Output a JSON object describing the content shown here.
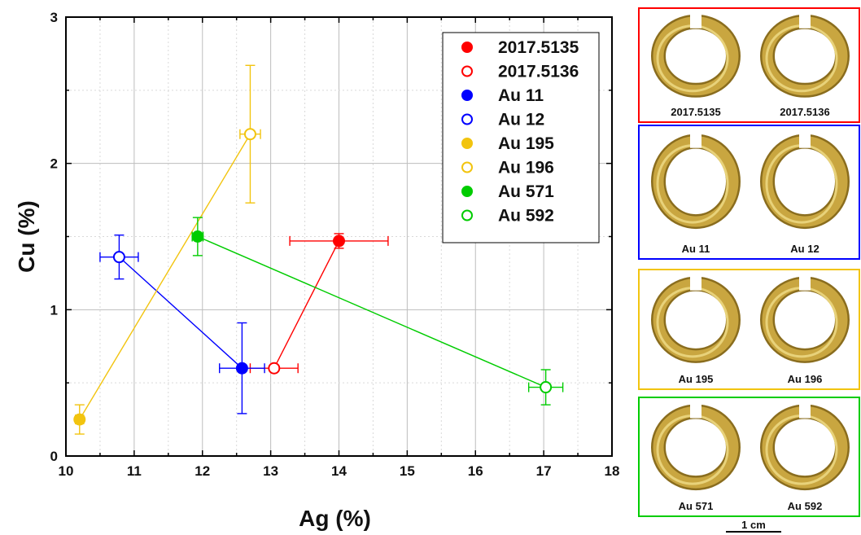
{
  "chart_data": {
    "type": "scatter",
    "xlabel": "Ag (%)",
    "ylabel": "Cu (%)",
    "xlim": [
      10,
      18
    ],
    "ylim": [
      0,
      3
    ],
    "xticks": [
      "10",
      "11",
      "12",
      "13",
      "14",
      "15",
      "16",
      "17",
      "18"
    ],
    "yticks": [
      "0",
      "1",
      "2",
      "3"
    ],
    "grid": true,
    "legend_position": "top-right",
    "series": [
      {
        "name": "2017.5135",
        "color": "#ff0000",
        "filled": true,
        "x": 14.0,
        "y": 1.47,
        "xerr": 0.72,
        "yerr": 0.05
      },
      {
        "name": "2017.5136",
        "color": "#ff0000",
        "filled": false,
        "x": 13.05,
        "y": 0.6,
        "xerr": 0.35,
        "yerr": 0.0
      },
      {
        "name": "Au 11",
        "color": "#0000ff",
        "filled": true,
        "x": 12.58,
        "y": 0.6,
        "xerr": 0.33,
        "yerr": 0.31
      },
      {
        "name": "Au 12",
        "color": "#0000ff",
        "filled": false,
        "x": 10.78,
        "y": 1.36,
        "xerr": 0.28,
        "yerr": 0.15
      },
      {
        "name": "Au 195",
        "color": "#f2c40f",
        "filled": true,
        "x": 10.2,
        "y": 0.25,
        "xerr": 0.06,
        "yerr": 0.1
      },
      {
        "name": "Au 196",
        "color": "#f2c40f",
        "filled": false,
        "x": 12.7,
        "y": 2.2,
        "xerr": 0.15,
        "yerr": 0.47
      },
      {
        "name": "Au 571",
        "color": "#00cc00",
        "filled": true,
        "x": 11.93,
        "y": 1.5,
        "xerr": 0.08,
        "yerr": 0.13
      },
      {
        "name": "Au 592",
        "color": "#00cc00",
        "filled": false,
        "x": 17.03,
        "y": 0.47,
        "xerr": 0.25,
        "yerr": 0.12
      }
    ],
    "connections": [
      {
        "from": "2017.5135",
        "to": "2017.5136",
        "color": "#ff0000"
      },
      {
        "from": "Au 11",
        "to": "Au 12",
        "color": "#0000ff"
      },
      {
        "from": "Au 195",
        "to": "Au 196",
        "color": "#f2c40f"
      },
      {
        "from": "Au 571",
        "to": "Au 592",
        "color": "#00cc00"
      }
    ]
  },
  "photo_panels": [
    {
      "border_color": "#ff0000",
      "labels": [
        "2017.5135",
        "2017.5136"
      ]
    },
    {
      "border_color": "#0000ff",
      "labels": [
        "Au 11",
        "Au 12"
      ]
    },
    {
      "border_color": "#f2c40f",
      "labels": [
        "Au 195",
        "Au 196"
      ]
    },
    {
      "border_color": "#00cc00",
      "labels": [
        "Au 571",
        "Au 592"
      ]
    }
  ],
  "scale_bar_label": "1 cm"
}
